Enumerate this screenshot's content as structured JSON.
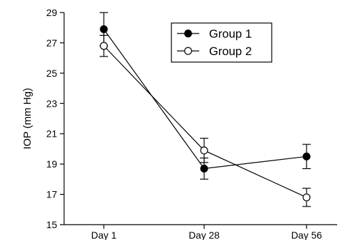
{
  "chart_data": {
    "type": "line",
    "title": "",
    "xlabel": "",
    "ylabel": "IOP (mm Hg)",
    "categories": [
      "Day 1",
      "Day 28",
      "Day 56"
    ],
    "ylim": [
      15,
      29
    ],
    "yticks": [
      15,
      17,
      19,
      21,
      23,
      25,
      27,
      29
    ],
    "grid": false,
    "legend_position": "top-right",
    "series": [
      {
        "name": "Group 1",
        "marker": "filled-circle",
        "color": "#000000",
        "values": [
          27.9,
          18.7,
          19.5
        ],
        "error": [
          1.1,
          0.7,
          0.8
        ]
      },
      {
        "name": "Group 2",
        "marker": "open-circle",
        "color": "#000000",
        "values": [
          26.8,
          19.9,
          16.8
        ],
        "error": [
          0.7,
          0.8,
          0.6
        ]
      }
    ]
  }
}
